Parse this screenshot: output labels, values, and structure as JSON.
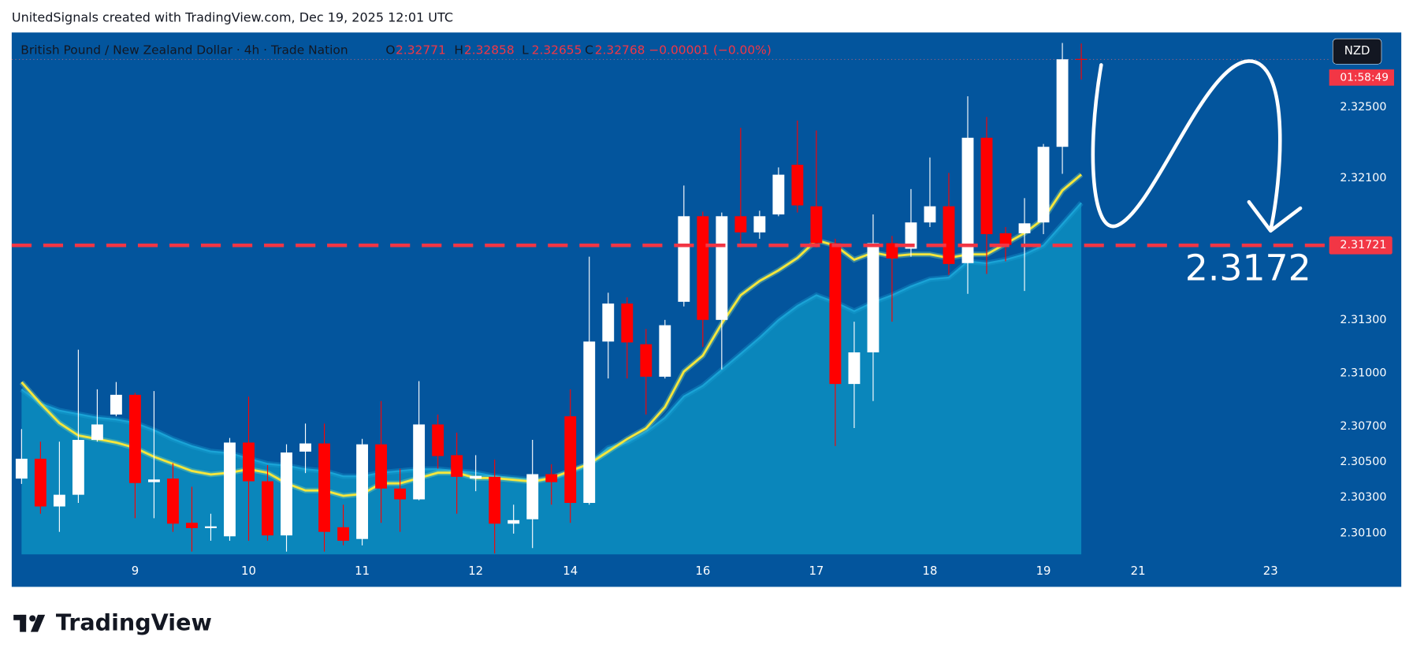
{
  "credit": "UnitedSignals created with TradingView.com, Dec 19, 2025 12:01 UTC",
  "logo": "TradingView",
  "chart_data": {
    "type": "candlestick",
    "title": "British Pound / New Zealand Dollar · 4h · Trade Nation",
    "ohlc_letters": [
      "O",
      "H",
      "L",
      "C"
    ],
    "change_label": "−0.00001 (−0.00%)",
    "currency": "NZD",
    "countdown": "01:58:49",
    "up_color": "#ffffff",
    "down_color": "#ff0000",
    "open": [
      2.30407,
      2.30519,
      2.3025,
      2.30316,
      2.30625,
      2.30768,
      2.30879,
      2.30387,
      2.30407,
      2.30158,
      2.30128,
      2.30082,
      2.3061,
      2.30392,
      2.30087,
      2.30559,
      2.30605,
      2.30133,
      2.30067,
      2.306,
      2.30351,
      2.3029,
      2.30712,
      2.30539,
      2.30407,
      2.30417,
      2.30153,
      2.30178,
      2.30432,
      2.30758,
      2.3027,
      2.31179,
      2.31393,
      2.31164,
      2.30981,
      2.31403,
      2.31885,
      2.31301,
      2.31885,
      2.31794,
      2.31895,
      2.32175,
      2.31941,
      2.31733,
      2.3094,
      2.31118,
      2.31733,
      2.31702,
      2.3185,
      2.31941,
      2.31621,
      2.32327,
      2.31789,
      2.31789,
      2.3185,
      2.32276,
      2.32771
    ],
    "high": [
      2.30686,
      2.30615,
      2.30615,
      2.31133,
      2.3091,
      2.30951,
      2.3089,
      2.309,
      2.30493,
      2.30361,
      2.30209,
      2.30636,
      2.30869,
      2.30483,
      2.306,
      2.30717,
      2.30717,
      2.3026,
      2.30631,
      2.30844,
      2.30463,
      2.30956,
      2.30768,
      2.30666,
      2.30539,
      2.30514,
      2.3026,
      2.30625,
      2.30488,
      2.3091,
      2.31657,
      2.31454,
      2.31428,
      2.3125,
      2.31301,
      2.32058,
      2.31911,
      2.31906,
      2.32383,
      2.31916,
      2.3216,
      2.32424,
      2.32368,
      2.31758,
      2.31291,
      2.31895,
      2.31774,
      2.32038,
      2.32216,
      2.32129,
      2.32561,
      2.32444,
      2.31824,
      2.31987,
      2.32292,
      2.32861,
      2.32858
    ],
    "low": [
      2.30377,
      2.30209,
      2.30107,
      2.3027,
      2.30615,
      2.30758,
      2.30184,
      2.30184,
      2.30107,
      2.29996,
      2.30057,
      2.30057,
      2.30057,
      2.30057,
      2.29996,
      2.30438,
      2.29996,
      2.30031,
      2.30031,
      2.30158,
      2.30107,
      2.30285,
      2.30463,
      2.30209,
      2.30336,
      2.29985,
      2.30097,
      2.30016,
      2.3026,
      2.30158,
      2.3026,
      2.30971,
      2.30971,
      2.30768,
      2.30971,
      2.31377,
      2.31149,
      2.31022,
      2.31708,
      2.31758,
      2.31885,
      2.31906,
      2.31708,
      2.3059,
      2.30692,
      2.30844,
      2.31291,
      2.31657,
      2.31824,
      2.31555,
      2.31448,
      2.3156,
      2.31631,
      2.31464,
      2.31784,
      2.32124,
      2.32655
    ],
    "close": [
      2.30519,
      2.3025,
      2.30316,
      2.30625,
      2.30712,
      2.30879,
      2.30382,
      2.30402,
      2.30153,
      2.30128,
      2.30138,
      2.3061,
      2.30392,
      2.30087,
      2.30554,
      2.30605,
      2.30107,
      2.30057,
      2.306,
      2.30351,
      2.3029,
      2.30712,
      2.30534,
      2.30417,
      2.30422,
      2.30153,
      2.30173,
      2.30432,
      2.30387,
      2.3027,
      2.31179,
      2.31393,
      2.31174,
      2.30981,
      2.31271,
      2.31885,
      2.31301,
      2.31885,
      2.31794,
      2.31885,
      2.32119,
      2.31946,
      2.31733,
      2.3094,
      2.31118,
      2.31733,
      2.31647,
      2.3185,
      2.31941,
      2.31616,
      2.32327,
      2.31784,
      2.31723,
      2.31845,
      2.32276,
      2.32769,
      2.32768
    ],
    "ma_fast": {
      "color": "#f5e63c",
      "values": [
        2.3095,
        2.3083,
        2.3072,
        2.3065,
        2.3063,
        2.3061,
        2.3058,
        2.3053,
        2.3049,
        2.3045,
        2.3043,
        2.3044,
        2.3046,
        2.3044,
        2.3038,
        2.3034,
        2.3034,
        2.3031,
        2.3032,
        2.3038,
        2.3038,
        2.3041,
        2.3044,
        2.3044,
        2.3041,
        2.3041,
        2.304,
        2.3039,
        2.3041,
        2.3045,
        2.3049,
        2.3056,
        2.3063,
        2.3069,
        2.3081,
        2.3101,
        2.311,
        2.3128,
        2.3144,
        2.3152,
        2.3158,
        2.3165,
        2.3175,
        2.3172,
        2.3164,
        2.3168,
        2.3166,
        2.3167,
        2.3167,
        2.3165,
        2.3167,
        2.3167,
        2.3173,
        2.3179,
        2.3187,
        2.3203,
        2.3212
      ]
    },
    "ma_slow": {
      "color": "#1aa3d6",
      "fill": "#0a86bb",
      "values": [
        2.3091,
        2.3083,
        2.3079,
        2.3077,
        2.3075,
        2.3074,
        2.3072,
        2.3068,
        2.3063,
        2.3059,
        2.3056,
        2.3055,
        2.3052,
        2.3049,
        2.3048,
        2.3046,
        2.3045,
        2.3042,
        2.3042,
        2.3044,
        2.3045,
        2.3046,
        2.3046,
        2.3045,
        2.3044,
        2.3042,
        2.3041,
        2.304,
        2.3041,
        2.3044,
        2.3049,
        2.3058,
        2.3061,
        2.3067,
        2.3075,
        2.3087,
        2.3093,
        2.3102,
        2.3111,
        2.312,
        2.313,
        2.3138,
        2.3144,
        2.314,
        2.3135,
        2.314,
        2.3144,
        2.3149,
        2.3153,
        2.3154,
        2.3163,
        2.3162,
        2.3164,
        2.3167,
        2.3172,
        2.3184,
        2.3196
      ]
    },
    "hline": {
      "value": 2.31721,
      "color": "#f23645"
    },
    "annotation": "2.3172",
    "xlim": [
      -0.52,
      69.1
    ],
    "xticks": [
      {
        "value": 6,
        "label": "9"
      },
      {
        "value": 12,
        "label": "10"
      },
      {
        "value": 18,
        "label": "11"
      },
      {
        "value": 24,
        "label": "12"
      },
      {
        "value": 29,
        "label": "14"
      },
      {
        "value": 36,
        "label": "16"
      },
      {
        "value": 42,
        "label": "17"
      },
      {
        "value": 48,
        "label": "18"
      },
      {
        "value": 54,
        "label": "19"
      },
      {
        "value": 59,
        "label": "21"
      },
      {
        "value": 66,
        "label": "23"
      }
    ],
    "ylim": [
      2.2998,
      2.3292
    ],
    "yticks": [
      {
        "value": 2.301,
        "label": "2.30100"
      },
      {
        "value": 2.303,
        "label": "2.30300"
      },
      {
        "value": 2.305,
        "label": "2.30500"
      },
      {
        "value": 2.307,
        "label": "2.30700"
      },
      {
        "value": 2.31,
        "label": "2.31000"
      },
      {
        "value": 2.313,
        "label": "2.31300"
      },
      {
        "value": 2.321,
        "label": "2.32100"
      },
      {
        "value": 2.325,
        "label": "2.32500"
      }
    ]
  }
}
